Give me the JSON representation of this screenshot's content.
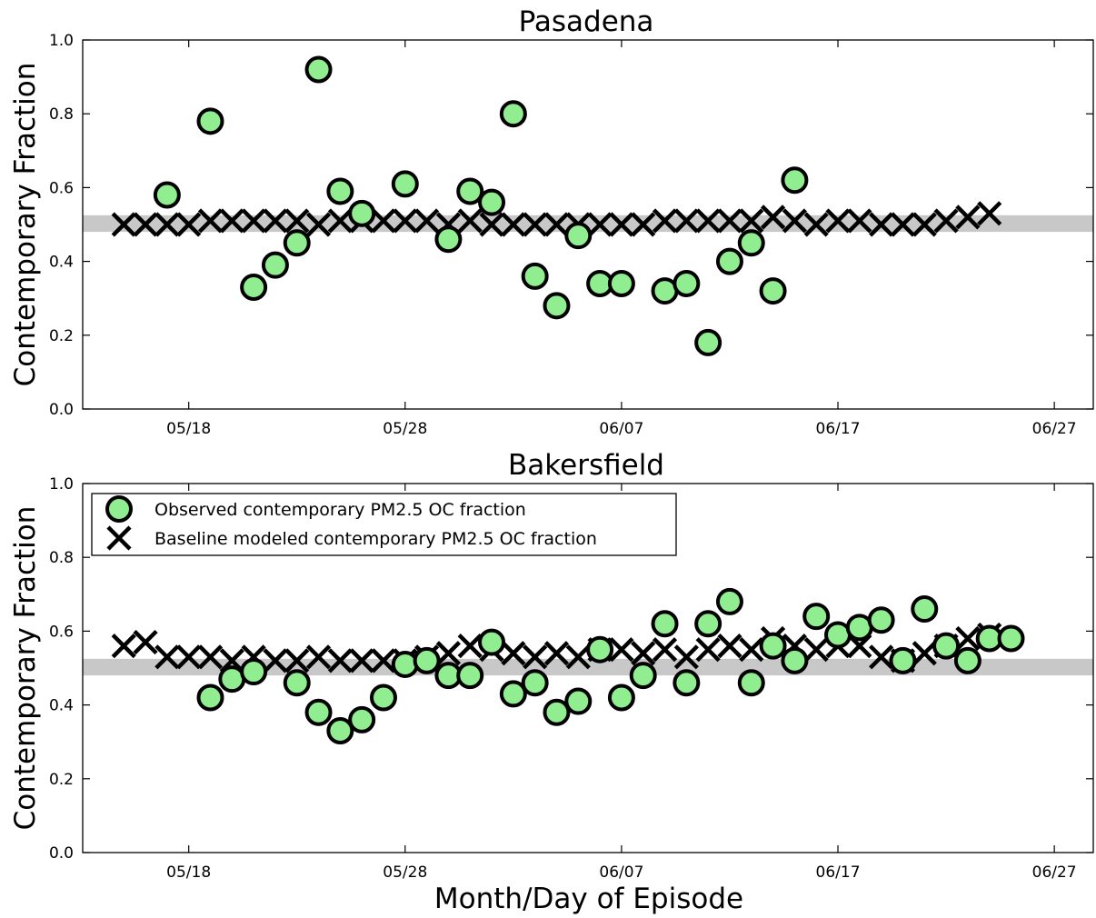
{
  "chart_data": [
    {
      "type": "scatter",
      "title": "Pasadena",
      "ylabel": "Contemporary Fraction",
      "xlabel": "",
      "ylim": [
        0.0,
        1.0
      ],
      "yticks": [
        "0.0",
        "0.2",
        "0.4",
        "0.6",
        "0.8",
        "1.0"
      ],
      "xticks": [
        {
          "day": 18,
          "label": "05/18"
        },
        {
          "day": 28,
          "label": "05/28"
        },
        {
          "day": 38,
          "label": "06/07"
        },
        {
          "day": 48,
          "label": "06/17"
        },
        {
          "day": 58,
          "label": "06/27"
        }
      ],
      "xlim_days": [
        13.1,
        59.8
      ],
      "baseline_band": [
        0.48,
        0.525
      ],
      "series": [
        {
          "kind": "observed",
          "points": [
            {
              "x": 17,
              "y": 0.58
            },
            {
              "x": 19,
              "y": 0.78
            },
            {
              "x": 21,
              "y": 0.33
            },
            {
              "x": 22,
              "y": 0.39
            },
            {
              "x": 23,
              "y": 0.45
            },
            {
              "x": 24,
              "y": 0.92
            },
            {
              "x": 25,
              "y": 0.59
            },
            {
              "x": 26,
              "y": 0.53
            },
            {
              "x": 28,
              "y": 0.61
            },
            {
              "x": 30,
              "y": 0.46
            },
            {
              "x": 31,
              "y": 0.59
            },
            {
              "x": 32,
              "y": 0.56
            },
            {
              "x": 33,
              "y": 0.8
            },
            {
              "x": 34,
              "y": 0.36
            },
            {
              "x": 35,
              "y": 0.28
            },
            {
              "x": 36,
              "y": 0.47
            },
            {
              "x": 37,
              "y": 0.34
            },
            {
              "x": 38,
              "y": 0.34
            },
            {
              "x": 40,
              "y": 0.32
            },
            {
              "x": 41,
              "y": 0.34
            },
            {
              "x": 42,
              "y": 0.18
            },
            {
              "x": 43,
              "y": 0.4
            },
            {
              "x": 44,
              "y": 0.45
            },
            {
              "x": 45,
              "y": 0.32
            },
            {
              "x": 46,
              "y": 0.62
            }
          ]
        },
        {
          "kind": "modeled",
          "points": [
            {
              "x": 15,
              "y": 0.5
            },
            {
              "x": 16,
              "y": 0.5
            },
            {
              "x": 17,
              "y": 0.5
            },
            {
              "x": 18,
              "y": 0.5
            },
            {
              "x": 19,
              "y": 0.51
            },
            {
              "x": 20,
              "y": 0.51
            },
            {
              "x": 21,
              "y": 0.51
            },
            {
              "x": 22,
              "y": 0.51
            },
            {
              "x": 23,
              "y": 0.51
            },
            {
              "x": 24,
              "y": 0.5
            },
            {
              "x": 25,
              "y": 0.51
            },
            {
              "x": 26,
              "y": 0.51
            },
            {
              "x": 27,
              "y": 0.51
            },
            {
              "x": 28,
              "y": 0.51
            },
            {
              "x": 29,
              "y": 0.51
            },
            {
              "x": 30,
              "y": 0.5
            },
            {
              "x": 31,
              "y": 0.51
            },
            {
              "x": 32,
              "y": 0.5
            },
            {
              "x": 33,
              "y": 0.5
            },
            {
              "x": 34,
              "y": 0.5
            },
            {
              "x": 35,
              "y": 0.5
            },
            {
              "x": 36,
              "y": 0.5
            },
            {
              "x": 37,
              "y": 0.5
            },
            {
              "x": 38,
              "y": 0.5
            },
            {
              "x": 39,
              "y": 0.5
            },
            {
              "x": 40,
              "y": 0.51
            },
            {
              "x": 41,
              "y": 0.51
            },
            {
              "x": 42,
              "y": 0.51
            },
            {
              "x": 43,
              "y": 0.51
            },
            {
              "x": 44,
              "y": 0.51
            },
            {
              "x": 45,
              "y": 0.52
            },
            {
              "x": 46,
              "y": 0.51
            },
            {
              "x": 47,
              "y": 0.5
            },
            {
              "x": 48,
              "y": 0.51
            },
            {
              "x": 49,
              "y": 0.51
            },
            {
              "x": 50,
              "y": 0.5
            },
            {
              "x": 51,
              "y": 0.5
            },
            {
              "x": 52,
              "y": 0.5
            },
            {
              "x": 53,
              "y": 0.51
            },
            {
              "x": 54,
              "y": 0.52
            },
            {
              "x": 55,
              "y": 0.53
            }
          ]
        }
      ]
    },
    {
      "type": "scatter",
      "title": "Bakersfield",
      "ylabel": "Contemporary Fraction",
      "xlabel": "Month/Day of Episode",
      "ylim": [
        0.0,
        1.0
      ],
      "yticks": [
        "0.0",
        "0.2",
        "0.4",
        "0.6",
        "0.8",
        "1.0"
      ],
      "xticks": [
        {
          "day": 18,
          "label": "05/18"
        },
        {
          "day": 28,
          "label": "05/28"
        },
        {
          "day": 38,
          "label": "06/07"
        },
        {
          "day": 48,
          "label": "06/17"
        },
        {
          "day": 58,
          "label": "06/27"
        }
      ],
      "xlim_days": [
        13.1,
        59.8
      ],
      "baseline_band": [
        0.48,
        0.525
      ],
      "legend": {
        "placement": "upper-left",
        "entries": [
          {
            "kind": "observed",
            "label": "Observed contemporary PM2.5 OC fraction"
          },
          {
            "kind": "modeled",
            "label": "Baseline modeled contemporary PM2.5 OC fraction"
          }
        ]
      },
      "series": [
        {
          "kind": "observed",
          "points": [
            {
              "x": 19,
              "y": 0.42
            },
            {
              "x": 20,
              "y": 0.47
            },
            {
              "x": 21,
              "y": 0.49
            },
            {
              "x": 23,
              "y": 0.46
            },
            {
              "x": 24,
              "y": 0.38
            },
            {
              "x": 25,
              "y": 0.33
            },
            {
              "x": 26,
              "y": 0.36
            },
            {
              "x": 27,
              "y": 0.42
            },
            {
              "x": 28,
              "y": 0.51
            },
            {
              "x": 29,
              "y": 0.52
            },
            {
              "x": 30,
              "y": 0.48
            },
            {
              "x": 31,
              "y": 0.48
            },
            {
              "x": 32,
              "y": 0.57
            },
            {
              "x": 33,
              "y": 0.43
            },
            {
              "x": 34,
              "y": 0.46
            },
            {
              "x": 35,
              "y": 0.38
            },
            {
              "x": 36,
              "y": 0.41
            },
            {
              "x": 37,
              "y": 0.55
            },
            {
              "x": 38,
              "y": 0.42
            },
            {
              "x": 39,
              "y": 0.48
            },
            {
              "x": 40,
              "y": 0.62
            },
            {
              "x": 41,
              "y": 0.46
            },
            {
              "x": 42,
              "y": 0.62
            },
            {
              "x": 43,
              "y": 0.68
            },
            {
              "x": 44,
              "y": 0.46
            },
            {
              "x": 45,
              "y": 0.56
            },
            {
              "x": 46,
              "y": 0.52
            },
            {
              "x": 47,
              "y": 0.64
            },
            {
              "x": 48,
              "y": 0.59
            },
            {
              "x": 49,
              "y": 0.61
            },
            {
              "x": 50,
              "y": 0.63
            },
            {
              "x": 51,
              "y": 0.52
            },
            {
              "x": 52,
              "y": 0.66
            },
            {
              "x": 53,
              "y": 0.56
            },
            {
              "x": 54,
              "y": 0.52
            },
            {
              "x": 55,
              "y": 0.58
            },
            {
              "x": 56,
              "y": 0.58
            }
          ]
        },
        {
          "kind": "modeled",
          "points": [
            {
              "x": 15,
              "y": 0.56
            },
            {
              "x": 16,
              "y": 0.57
            },
            {
              "x": 17,
              "y": 0.53
            },
            {
              "x": 18,
              "y": 0.53
            },
            {
              "x": 19,
              "y": 0.53
            },
            {
              "x": 20,
              "y": 0.52
            },
            {
              "x": 21,
              "y": 0.53
            },
            {
              "x": 22,
              "y": 0.52
            },
            {
              "x": 23,
              "y": 0.52
            },
            {
              "x": 24,
              "y": 0.53
            },
            {
              "x": 25,
              "y": 0.52
            },
            {
              "x": 26,
              "y": 0.52
            },
            {
              "x": 27,
              "y": 0.52
            },
            {
              "x": 28,
              "y": 0.52
            },
            {
              "x": 29,
              "y": 0.53
            },
            {
              "x": 30,
              "y": 0.54
            },
            {
              "x": 31,
              "y": 0.56
            },
            {
              "x": 32,
              "y": 0.55
            },
            {
              "x": 33,
              "y": 0.54
            },
            {
              "x": 34,
              "y": 0.53
            },
            {
              "x": 35,
              "y": 0.54
            },
            {
              "x": 36,
              "y": 0.53
            },
            {
              "x": 37,
              "y": 0.55
            },
            {
              "x": 38,
              "y": 0.55
            },
            {
              "x": 39,
              "y": 0.54
            },
            {
              "x": 40,
              "y": 0.55
            },
            {
              "x": 41,
              "y": 0.53
            },
            {
              "x": 42,
              "y": 0.55
            },
            {
              "x": 43,
              "y": 0.56
            },
            {
              "x": 44,
              "y": 0.55
            },
            {
              "x": 45,
              "y": 0.58
            },
            {
              "x": 46,
              "y": 0.56
            },
            {
              "x": 47,
              "y": 0.55
            },
            {
              "x": 48,
              "y": 0.56
            },
            {
              "x": 49,
              "y": 0.56
            },
            {
              "x": 50,
              "y": 0.53
            },
            {
              "x": 51,
              "y": 0.52
            },
            {
              "x": 52,
              "y": 0.54
            },
            {
              "x": 53,
              "y": 0.56
            },
            {
              "x": 54,
              "y": 0.58
            },
            {
              "x": 55,
              "y": 0.59
            }
          ]
        }
      ]
    }
  ]
}
